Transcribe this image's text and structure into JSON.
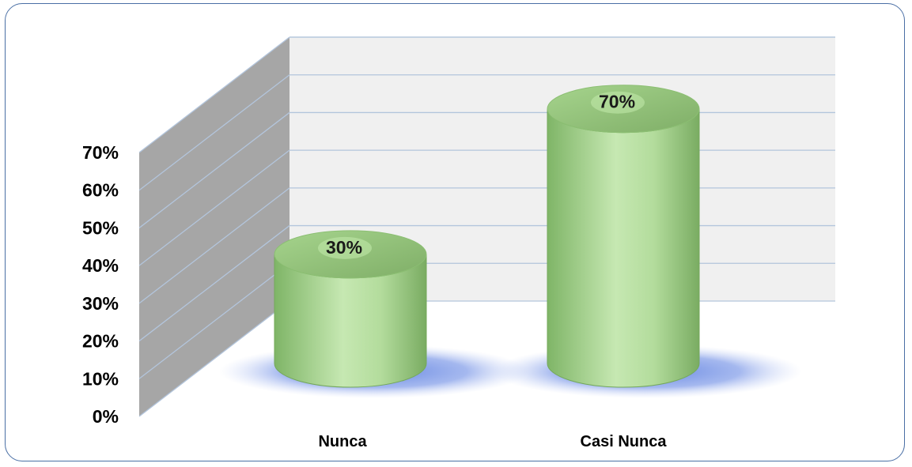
{
  "chart_data": {
    "type": "bar",
    "style": "3d-cylinder",
    "categories": [
      "Nunca",
      "Casi Nunca"
    ],
    "values": [
      30,
      70
    ],
    "value_labels": [
      "30%",
      "70%"
    ],
    "yticks": [
      "0%",
      "10%",
      "20%",
      "30%",
      "40%",
      "50%",
      "60%",
      "70%"
    ],
    "ylim": [
      0,
      70
    ],
    "grid": true,
    "legend": "none",
    "title": "",
    "xlabel": "",
    "ylabel": "",
    "colors": {
      "cylinder": "#9fcf86",
      "cylinder_edge": "#74a85a",
      "shadow": "#6f8fe6",
      "wall": "#f0f0f0",
      "side_wall": "#a6a6a6",
      "grid": "#b3c5dc",
      "frame": "#4a6fa5"
    }
  }
}
